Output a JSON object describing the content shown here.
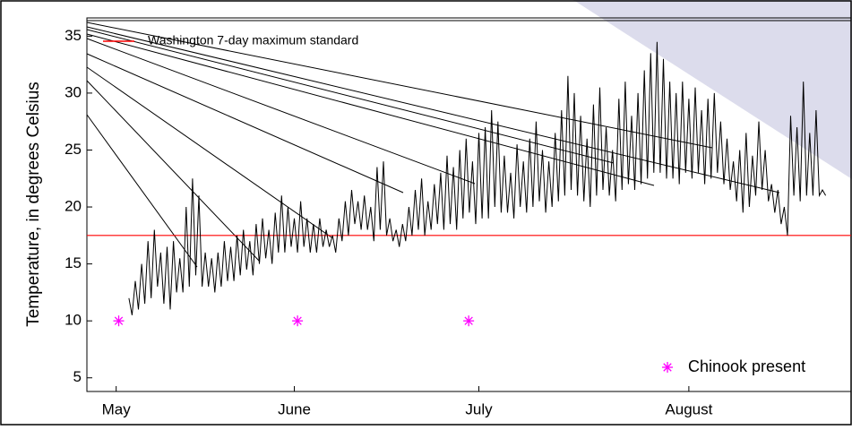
{
  "chart_data": {
    "type": "line",
    "ylabel": "Temperature, in degrees Celsius",
    "xlim": [
      -4.6,
      115.5
    ],
    "xticks": [
      {
        "value": 0,
        "label": "May"
      },
      {
        "value": 28,
        "label": "June"
      },
      {
        "value": 57,
        "label": "July"
      },
      {
        "value": 90,
        "label": "August"
      }
    ],
    "ylim": [
      3.8,
      36.6
    ],
    "yticks": [
      5,
      10,
      15,
      20,
      25,
      30,
      35
    ],
    "series": [
      {
        "color": "#000000",
        "x": [
          2,
          2.5,
          3,
          3.5,
          4,
          4.5,
          5,
          5.5,
          6,
          6.5,
          7,
          7.5,
          8,
          8.5,
          9,
          9.5,
          10,
          10.5,
          11,
          11.5,
          12,
          12.5,
          13,
          13.5,
          14,
          14.5,
          15,
          15.5,
          16,
          16.5,
          17,
          17.5,
          18,
          18.5,
          19,
          19.5,
          20,
          20.5,
          21,
          21.5,
          22,
          22.5,
          23,
          23.5,
          24,
          24.5,
          25,
          25.5,
          26,
          26.5,
          27,
          27.5,
          28,
          28.5,
          29,
          29.5,
          30,
          30.5,
          31,
          31.5,
          32,
          32.5,
          33,
          33.5,
          34,
          34.5,
          35,
          35.5,
          36,
          36.5,
          37,
          37.5,
          38,
          38.5,
          39,
          39.5,
          40,
          40.5,
          41,
          41.5,
          42,
          42.5,
          43,
          43.5,
          44,
          44.5,
          45,
          45.5,
          46,
          46.5,
          47,
          47.5,
          48,
          48.5,
          49,
          49.5,
          50,
          50.5,
          51,
          51.5,
          52,
          52.5,
          53,
          53.5,
          54,
          54.5,
          55,
          55.5,
          56,
          56.5,
          57,
          57.5,
          58,
          58.5,
          59,
          59.5,
          60,
          60.5,
          61,
          61.5,
          62,
          62.5,
          63,
          63.5,
          64,
          64.5,
          65,
          65.5,
          66,
          66.5,
          67,
          67.5,
          68,
          68.5,
          69,
          69.5,
          70,
          70.5,
          71,
          71.5,
          72,
          72.5,
          73,
          73.5,
          74,
          74.5,
          75,
          75.5,
          76,
          76.5,
          77,
          77.5,
          78,
          78.5,
          79,
          79.5,
          80,
          80.5,
          81,
          81.5,
          82,
          82.5,
          83,
          83.5,
          84,
          84.5,
          85,
          85.5,
          86,
          86.5,
          87,
          87.5,
          88,
          88.5,
          89,
          89.5,
          90,
          90.5,
          91,
          91.5,
          92,
          92.5,
          93,
          93.5,
          94,
          94.5,
          95,
          95.5,
          96,
          96.5,
          97,
          97.5,
          98,
          98.5,
          99,
          99.5,
          100,
          100.5,
          101,
          101.5,
          102,
          102.5,
          103,
          103.5,
          104,
          104.5,
          105,
          105.5,
          106,
          106.5,
          107,
          107.5,
          108,
          108.5,
          109,
          109.5,
          110,
          110.5,
          111,
          111.5
        ],
        "values": [
          12,
          10.5,
          13.5,
          11,
          15,
          11.5,
          17,
          12,
          18,
          13,
          16,
          11.5,
          16.5,
          11,
          17,
          12.5,
          15.5,
          12.5,
          20,
          13,
          22.5,
          14,
          21,
          13,
          16,
          13,
          15.5,
          12.5,
          16,
          13,
          17,
          13.5,
          16.5,
          13.5,
          17.5,
          14,
          18,
          14.5,
          17,
          14,
          18.5,
          15,
          19,
          15.5,
          18,
          15,
          19.5,
          16,
          21,
          16,
          20,
          16.5,
          19,
          16,
          20.5,
          16.5,
          19,
          16,
          18.5,
          16,
          19,
          16.5,
          18,
          16.5,
          17.5,
          16,
          19,
          17,
          20.5,
          17.5,
          21.5,
          18.5,
          20.5,
          18,
          21,
          18,
          20,
          17,
          23.5,
          18,
          24,
          17.5,
          19,
          17,
          18,
          16.5,
          18.5,
          17,
          20,
          17.5,
          21.5,
          18,
          22.5,
          17.5,
          20.5,
          18,
          22,
          18.5,
          23,
          18,
          24.5,
          18.5,
          23.5,
          18,
          25,
          19,
          26,
          19.5,
          24,
          18.5,
          26.5,
          19,
          27,
          19,
          28.5,
          20,
          27.5,
          19.5,
          24.5,
          19.5,
          23,
          19,
          25.5,
          20,
          24,
          19.5,
          26,
          20,
          27.5,
          20.5,
          25,
          19.5,
          24,
          20,
          26.5,
          20.5,
          28.5,
          21,
          31.5,
          21.5,
          30,
          21,
          28,
          20.5,
          26,
          20,
          29,
          21,
          30.5,
          21.5,
          27,
          21,
          25,
          20.5,
          29.5,
          21.5,
          31,
          22,
          28,
          21.5,
          30,
          22,
          32,
          22.5,
          33.5,
          23,
          34.5,
          23,
          33,
          22.5,
          31,
          22.5,
          30,
          22,
          31,
          23,
          29.5,
          22.5,
          30.5,
          23,
          28.5,
          22,
          29.5,
          22.5,
          30,
          23,
          27.5,
          22,
          26,
          21.5,
          24,
          20.5,
          25,
          19.5,
          26.5,
          20,
          24.5,
          21,
          27.5,
          21.5,
          25,
          20.5,
          22,
          19.5,
          21.5,
          18.5,
          20,
          17.5,
          28,
          21,
          27,
          20.5,
          31,
          21,
          26.5,
          21,
          28.5,
          21,
          21.5,
          21
        ]
      }
    ],
    "reference_line": {
      "name": "Washington 7-day maximum standard",
      "value": 17.5,
      "color": "#ff0000"
    },
    "markers": {
      "name": "Chinook present",
      "color": "#ff00ff",
      "x": [
        0.4,
        28.5,
        55.4
      ],
      "values": [
        10,
        10,
        10
      ]
    }
  }
}
